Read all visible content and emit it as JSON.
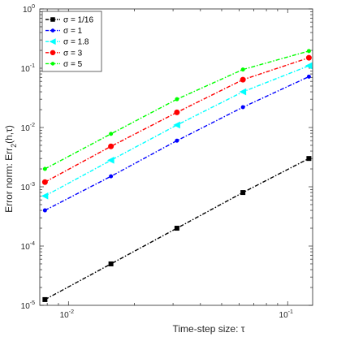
{
  "chart_data": {
    "type": "line",
    "title": "",
    "xlabel": "Time-step size: τ",
    "ylabel_main": "Error norm: Err",
    "ylabel_sub": "2",
    "ylabel_tail": "(h,τ)",
    "xscale": "log",
    "yscale": "log",
    "xlim": [
      0.0074,
      0.13
    ],
    "ylim": [
      1e-05,
      1
    ],
    "grid": false,
    "legend_position": "top-left",
    "x": [
      0.0078125,
      0.015625,
      0.03125,
      0.0625,
      0.125
    ],
    "x_ticks": [
      {
        "value": 0.01,
        "base": "10",
        "exp": "-2"
      },
      {
        "value": 0.1,
        "base": "10",
        "exp": "-1"
      }
    ],
    "y_ticks": [
      {
        "value": 1e-05,
        "base": "10",
        "exp": "-5"
      },
      {
        "value": 0.0001,
        "base": "10",
        "exp": "-4"
      },
      {
        "value": 0.001,
        "base": "10",
        "exp": "-3"
      },
      {
        "value": 0.01,
        "base": "10",
        "exp": "-2"
      },
      {
        "value": 0.1,
        "base": "10",
        "exp": "-1"
      },
      {
        "value": 1,
        "base": "10",
        "exp": "0"
      }
    ],
    "series": [
      {
        "name": "σ = 1/16",
        "color": "#000000",
        "marker": "square",
        "values": [
          1.25e-05,
          5e-05,
          0.0002,
          0.0008,
          0.003
        ]
      },
      {
        "name": "σ = 1",
        "color": "#0000ff",
        "marker": "dot",
        "values": [
          0.0004,
          0.0015,
          0.006,
          0.022,
          0.072
        ]
      },
      {
        "name": "σ = 1.8",
        "color": "#00ffff",
        "marker": "triangle-left",
        "values": [
          0.0007,
          0.0028,
          0.011,
          0.04,
          0.11
        ]
      },
      {
        "name": "σ = 3",
        "color": "#ff0000",
        "marker": "circle",
        "values": [
          0.0012,
          0.0048,
          0.018,
          0.064,
          0.15
        ]
      },
      {
        "name": "σ = 5",
        "color": "#00ff00",
        "marker": "dot",
        "values": [
          0.002,
          0.0078,
          0.03,
          0.095,
          0.195
        ]
      }
    ]
  }
}
